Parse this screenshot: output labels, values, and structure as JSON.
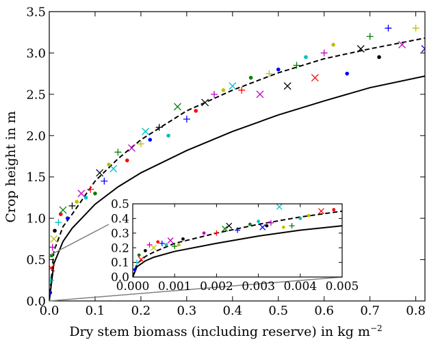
{
  "chart_data": {
    "type": "scatter",
    "main": {
      "xlabel": "Dry stem biomass (including reserve) in kg m",
      "xlabel_unit_sup": "−2",
      "ylabel": "Crop height in m",
      "xlim": [
        0,
        0.82
      ],
      "ylim": [
        0,
        3.5
      ],
      "x_ticks": [
        0.0,
        0.1,
        0.2,
        0.3,
        0.4,
        0.5,
        0.6,
        0.7,
        0.8
      ],
      "x_tick_labels": [
        "0.0",
        "0.1",
        "0.2",
        "0.3",
        "0.4",
        "0.5",
        "0.6",
        "0.7",
        "0.8"
      ],
      "y_ticks": [
        0.0,
        0.5,
        1.0,
        1.5,
        2.0,
        2.5,
        3.0,
        3.5
      ],
      "y_tick_labels": [
        "0.0",
        "0.5",
        "1.0",
        "1.5",
        "2.0",
        "2.5",
        "3.0",
        "3.5"
      ],
      "grid": false,
      "curves": [
        {
          "style": "dashed",
          "color": "#000000",
          "x": [
            0,
            0.01,
            0.03,
            0.05,
            0.1,
            0.15,
            0.2,
            0.3,
            0.4,
            0.5,
            0.6,
            0.7,
            0.82
          ],
          "y": [
            0,
            0.6,
            0.9,
            1.05,
            1.45,
            1.72,
            1.95,
            2.3,
            2.55,
            2.76,
            2.93,
            3.05,
            3.18
          ]
        },
        {
          "style": "solid",
          "color": "#000000",
          "x": [
            0,
            0.01,
            0.03,
            0.05,
            0.1,
            0.15,
            0.2,
            0.3,
            0.4,
            0.5,
            0.6,
            0.7,
            0.82
          ],
          "y": [
            0,
            0.45,
            0.72,
            0.88,
            1.17,
            1.38,
            1.55,
            1.82,
            2.05,
            2.25,
            2.42,
            2.58,
            2.72
          ]
        }
      ],
      "points": [
        {
          "x": 0.002,
          "y": 0.1,
          "m": "dot",
          "c": "#0000ff"
        },
        {
          "x": 0.003,
          "y": 0.25,
          "m": "plus",
          "c": "#00bfbf"
        },
        {
          "x": 0.004,
          "y": 0.4,
          "m": "cross",
          "c": "#ff0000"
        },
        {
          "x": 0.005,
          "y": 0.55,
          "m": "dot",
          "c": "#008000"
        },
        {
          "x": 0.007,
          "y": 0.65,
          "m": "plus",
          "c": "#bf00bf"
        },
        {
          "x": 0.01,
          "y": 0.75,
          "m": "cross",
          "c": "#bfbf00"
        },
        {
          "x": 0.012,
          "y": 0.85,
          "m": "dot",
          "c": "#000000"
        },
        {
          "x": 0.02,
          "y": 0.95,
          "m": "plus",
          "c": "#00bfbf"
        },
        {
          "x": 0.025,
          "y": 1.05,
          "m": "dot",
          "c": "#ff0000"
        },
        {
          "x": 0.03,
          "y": 1.1,
          "m": "cross",
          "c": "#008000"
        },
        {
          "x": 0.04,
          "y": 1.0,
          "m": "dot",
          "c": "#0000ff"
        },
        {
          "x": 0.05,
          "y": 1.15,
          "m": "plus",
          "c": "#000000"
        },
        {
          "x": 0.06,
          "y": 1.2,
          "m": "dot",
          "c": "#bfbf00"
        },
        {
          "x": 0.07,
          "y": 1.3,
          "m": "cross",
          "c": "#bf00bf"
        },
        {
          "x": 0.08,
          "y": 1.25,
          "m": "dot",
          "c": "#00bfbf"
        },
        {
          "x": 0.09,
          "y": 1.35,
          "m": "plus",
          "c": "#ff0000"
        },
        {
          "x": 0.1,
          "y": 1.3,
          "m": "dot",
          "c": "#008000"
        },
        {
          "x": 0.11,
          "y": 1.55,
          "m": "cross",
          "c": "#000000"
        },
        {
          "x": 0.12,
          "y": 1.45,
          "m": "plus",
          "c": "#0000ff"
        },
        {
          "x": 0.13,
          "y": 1.65,
          "m": "dot",
          "c": "#bfbf00"
        },
        {
          "x": 0.14,
          "y": 1.6,
          "m": "cross",
          "c": "#00bfbf"
        },
        {
          "x": 0.15,
          "y": 1.8,
          "m": "plus",
          "c": "#008000"
        },
        {
          "x": 0.17,
          "y": 1.7,
          "m": "dot",
          "c": "#ff0000"
        },
        {
          "x": 0.18,
          "y": 1.85,
          "m": "cross",
          "c": "#bf00bf"
        },
        {
          "x": 0.2,
          "y": 1.9,
          "m": "plus",
          "c": "#bfbf00"
        },
        {
          "x": 0.21,
          "y": 2.05,
          "m": "cross",
          "c": "#00bfbf"
        },
        {
          "x": 0.22,
          "y": 1.95,
          "m": "dot",
          "c": "#0000ff"
        },
        {
          "x": 0.24,
          "y": 2.1,
          "m": "plus",
          "c": "#000000"
        },
        {
          "x": 0.26,
          "y": 2.0,
          "m": "dot",
          "c": "#00bfbf"
        },
        {
          "x": 0.28,
          "y": 2.35,
          "m": "cross",
          "c": "#008000"
        },
        {
          "x": 0.3,
          "y": 2.2,
          "m": "plus",
          "c": "#0000ff"
        },
        {
          "x": 0.32,
          "y": 2.3,
          "m": "dot",
          "c": "#ff0000"
        },
        {
          "x": 0.34,
          "y": 2.4,
          "m": "cross",
          "c": "#000000"
        },
        {
          "x": 0.36,
          "y": 2.5,
          "m": "plus",
          "c": "#bf00bf"
        },
        {
          "x": 0.38,
          "y": 2.55,
          "m": "dot",
          "c": "#bfbf00"
        },
        {
          "x": 0.4,
          "y": 2.6,
          "m": "cross",
          "c": "#00bfbf"
        },
        {
          "x": 0.42,
          "y": 2.55,
          "m": "plus",
          "c": "#ff0000"
        },
        {
          "x": 0.44,
          "y": 2.7,
          "m": "dot",
          "c": "#008000"
        },
        {
          "x": 0.46,
          "y": 2.5,
          "m": "cross",
          "c": "#bf00bf"
        },
        {
          "x": 0.48,
          "y": 2.75,
          "m": "plus",
          "c": "#bfbf00"
        },
        {
          "x": 0.5,
          "y": 2.8,
          "m": "dot",
          "c": "#0000ff"
        },
        {
          "x": 0.52,
          "y": 2.6,
          "m": "cross",
          "c": "#000000"
        },
        {
          "x": 0.54,
          "y": 2.85,
          "m": "plus",
          "c": "#008000"
        },
        {
          "x": 0.56,
          "y": 2.95,
          "m": "dot",
          "c": "#00bfbf"
        },
        {
          "x": 0.58,
          "y": 2.7,
          "m": "cross",
          "c": "#ff0000"
        },
        {
          "x": 0.6,
          "y": 3.0,
          "m": "plus",
          "c": "#bf00bf"
        },
        {
          "x": 0.62,
          "y": 3.1,
          "m": "dot",
          "c": "#bfbf00"
        },
        {
          "x": 0.65,
          "y": 2.75,
          "m": "dot",
          "c": "#0000ff"
        },
        {
          "x": 0.68,
          "y": 3.05,
          "m": "cross",
          "c": "#000000"
        },
        {
          "x": 0.7,
          "y": 3.2,
          "m": "plus",
          "c": "#008000"
        },
        {
          "x": 0.72,
          "y": 2.95,
          "m": "dot",
          "c": "#000000"
        },
        {
          "x": 0.74,
          "y": 3.3,
          "m": "plus",
          "c": "#0000ff"
        },
        {
          "x": 0.77,
          "y": 3.1,
          "m": "cross",
          "c": "#bf00bf"
        },
        {
          "x": 0.8,
          "y": 3.3,
          "m": "plus",
          "c": "#bfbf00"
        },
        {
          "x": 0.82,
          "y": 3.05,
          "m": "cross",
          "c": "#0000ff"
        }
      ]
    },
    "inset": {
      "xlim": [
        0,
        0.005
      ],
      "ylim": [
        0,
        0.5
      ],
      "x_ticks": [
        0.0,
        0.001,
        0.002,
        0.003,
        0.004,
        0.005
      ],
      "x_tick_labels": [
        "0.000",
        "0.001",
        "0.002",
        "0.003",
        "0.004",
        "0.005"
      ],
      "y_ticks": [
        0.0,
        0.1,
        0.2,
        0.3,
        0.4,
        0.5
      ],
      "y_tick_labels": [
        "0.0",
        "0.1",
        "0.2",
        "0.3",
        "0.4",
        "0.5"
      ],
      "curves": [
        {
          "style": "dashed",
          "color": "#000000",
          "x": [
            0,
            0.0001,
            0.0003,
            0.0005,
            0.001,
            0.002,
            0.003,
            0.004,
            0.005
          ],
          "y": [
            0,
            0.09,
            0.14,
            0.17,
            0.23,
            0.3,
            0.36,
            0.41,
            0.45
          ]
        },
        {
          "style": "solid",
          "color": "#000000",
          "x": [
            0,
            0.0001,
            0.0003,
            0.0005,
            0.001,
            0.002,
            0.003,
            0.004,
            0.005
          ],
          "y": [
            0,
            0.07,
            0.11,
            0.135,
            0.175,
            0.23,
            0.28,
            0.32,
            0.35
          ]
        }
      ],
      "points": [
        {
          "x": 5e-05,
          "y": 0.05,
          "m": "dot",
          "c": "#0000ff"
        },
        {
          "x": 0.0001,
          "y": 0.1,
          "m": "plus",
          "c": "#00bfbf"
        },
        {
          "x": 0.00015,
          "y": 0.15,
          "m": "dot",
          "c": "#008000"
        },
        {
          "x": 0.0002,
          "y": 0.12,
          "m": "cross",
          "c": "#ff0000"
        },
        {
          "x": 0.0003,
          "y": 0.18,
          "m": "dot",
          "c": "#000000"
        },
        {
          "x": 0.0004,
          "y": 0.22,
          "m": "plus",
          "c": "#bf00bf"
        },
        {
          "x": 0.0005,
          "y": 0.2,
          "m": "cross",
          "c": "#bfbf00"
        },
        {
          "x": 0.0006,
          "y": 0.24,
          "m": "dot",
          "c": "#ff0000"
        },
        {
          "x": 0.0007,
          "y": 0.23,
          "m": "plus",
          "c": "#0000ff"
        },
        {
          "x": 0.0008,
          "y": 0.22,
          "m": "dot",
          "c": "#00bfbf"
        },
        {
          "x": 0.0009,
          "y": 0.25,
          "m": "cross",
          "c": "#bf00bf"
        },
        {
          "x": 0.001,
          "y": 0.21,
          "m": "plus",
          "c": "#008000"
        },
        {
          "x": 0.0011,
          "y": 0.22,
          "m": "dot",
          "c": "#bfbf00"
        },
        {
          "x": 0.0012,
          "y": 0.26,
          "m": "dot",
          "c": "#000000"
        },
        {
          "x": 0.0017,
          "y": 0.3,
          "m": "dot",
          "c": "#bf00bf"
        },
        {
          "x": 0.002,
          "y": 0.3,
          "m": "plus",
          "c": "#ff0000"
        },
        {
          "x": 0.0022,
          "y": 0.33,
          "m": "cross",
          "c": "#008000"
        },
        {
          "x": 0.0023,
          "y": 0.35,
          "m": "cross",
          "c": "#000000"
        },
        {
          "x": 0.0025,
          "y": 0.32,
          "m": "plus",
          "c": "#0000ff"
        },
        {
          "x": 0.0028,
          "y": 0.36,
          "m": "dot",
          "c": "#008000"
        },
        {
          "x": 0.003,
          "y": 0.38,
          "m": "dot",
          "c": "#00bfbf"
        },
        {
          "x": 0.0031,
          "y": 0.34,
          "m": "cross",
          "c": "#0000ff"
        },
        {
          "x": 0.0032,
          "y": 0.35,
          "m": "dot",
          "c": "#000000"
        },
        {
          "x": 0.0033,
          "y": 0.37,
          "m": "plus",
          "c": "#bf00bf"
        },
        {
          "x": 0.0035,
          "y": 0.48,
          "m": "cross",
          "c": "#00bfbf"
        },
        {
          "x": 0.0036,
          "y": 0.34,
          "m": "dot",
          "c": "#bfbf00"
        },
        {
          "x": 0.0038,
          "y": 0.35,
          "m": "plus",
          "c": "#008000"
        },
        {
          "x": 0.004,
          "y": 0.4,
          "m": "dot",
          "c": "#00bfbf"
        },
        {
          "x": 0.0042,
          "y": 0.42,
          "m": "dot",
          "c": "#bfbf00"
        },
        {
          "x": 0.0045,
          "y": 0.45,
          "m": "cross",
          "c": "#ff0000"
        },
        {
          "x": 0.0048,
          "y": 0.46,
          "m": "dot",
          "c": "#ff0000"
        }
      ]
    }
  }
}
